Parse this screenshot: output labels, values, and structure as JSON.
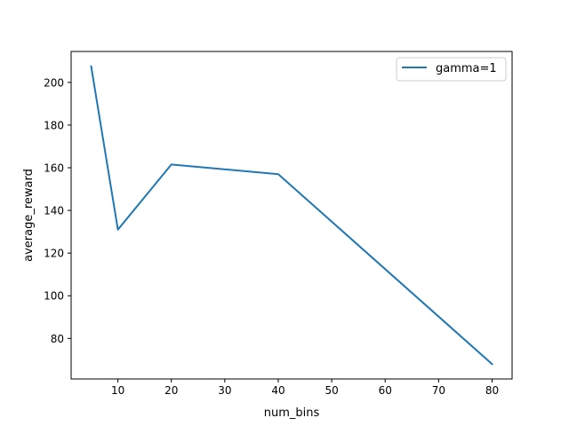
{
  "chart_data": {
    "type": "line",
    "title": "",
    "xlabel": "num_bins",
    "ylabel": "average_reward",
    "xlim": [
      1.25,
      83.75
    ],
    "ylim": [
      61.0,
      214.5
    ],
    "xticks": [
      10,
      20,
      30,
      40,
      50,
      60,
      70,
      80
    ],
    "yticks": [
      80,
      100,
      120,
      140,
      160,
      180,
      200
    ],
    "grid": false,
    "legend_position": "top-right",
    "series": [
      {
        "name": "gamma=1",
        "color": "#1f77b4",
        "x": [
          5,
          10,
          20,
          40,
          80
        ],
        "y": [
          207.5,
          131.0,
          161.5,
          157.0,
          68.0
        ]
      }
    ]
  }
}
